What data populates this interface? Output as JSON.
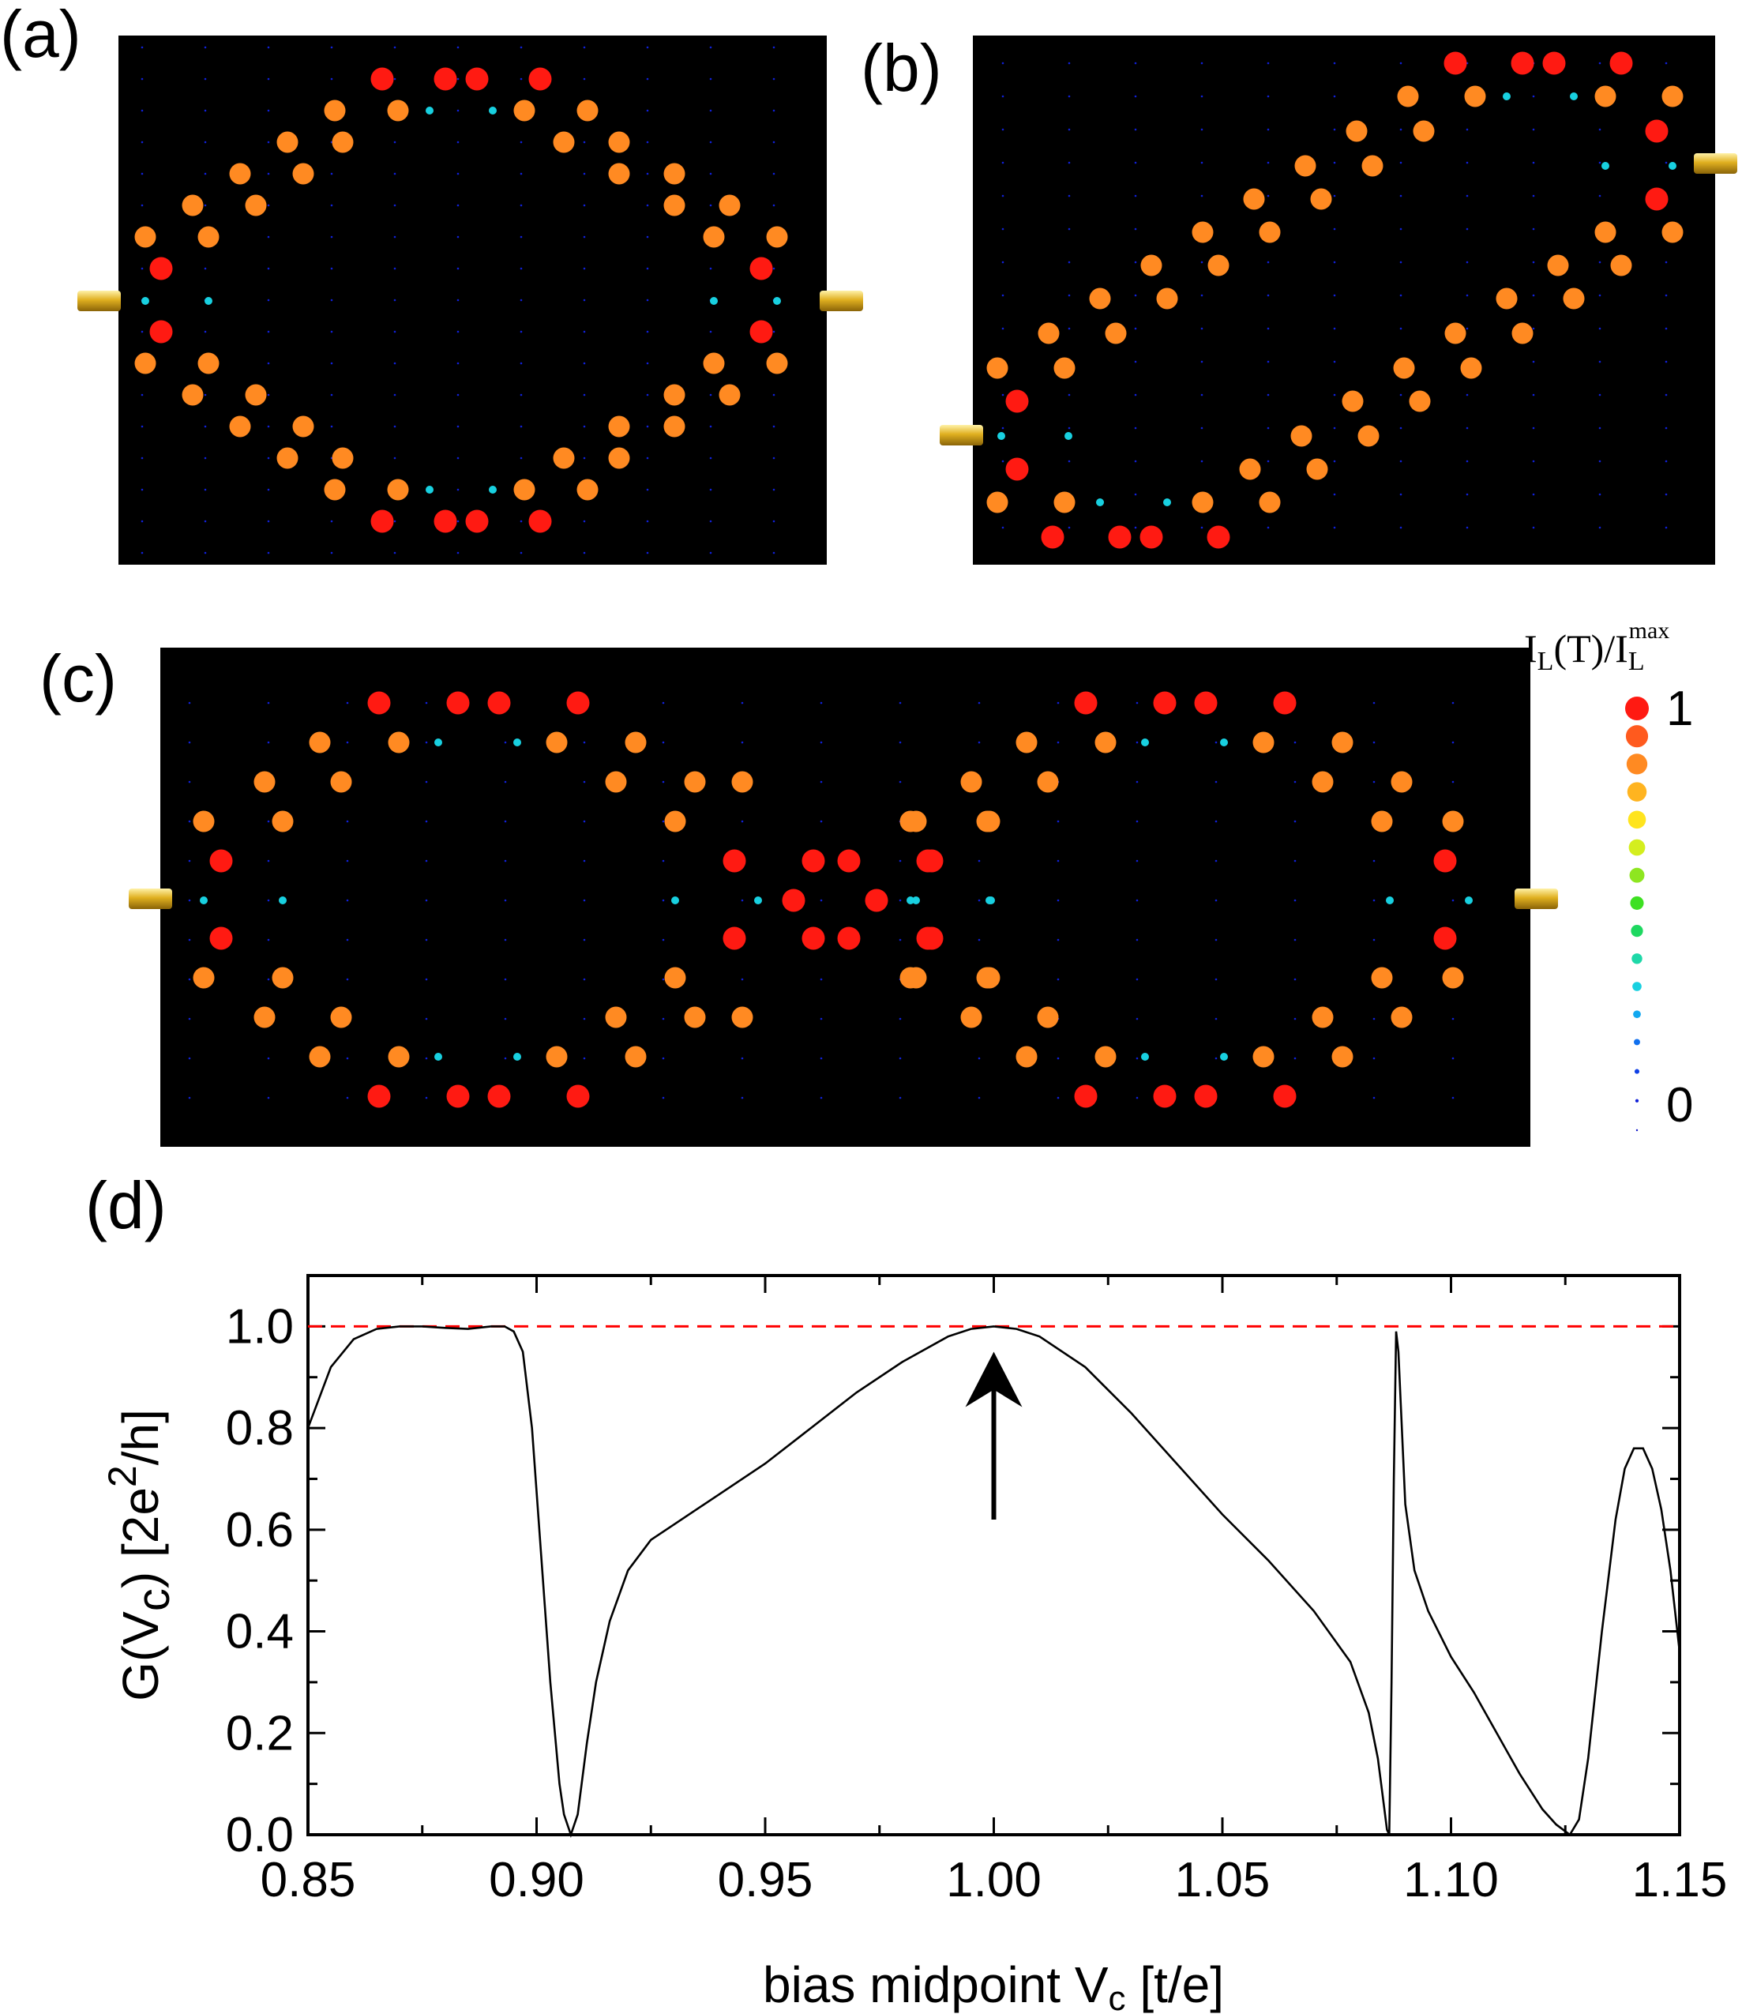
{
  "panels": {
    "a": {
      "label": "(a)"
    },
    "b": {
      "label": "(b)"
    },
    "c": {
      "label": "(c)"
    },
    "d": {
      "label": "(d)"
    }
  },
  "colorbar": {
    "title_main": "I",
    "title_sub1": "L",
    "title_mid": "(T)/I",
    "title_sub2": "L",
    "title_sup": "max",
    "max_label": "1",
    "min_label": "0",
    "colors": [
      "#ff1a12",
      "#ff5a1e",
      "#ff8a22",
      "#ffb420",
      "#ffe41e",
      "#d4ee1e",
      "#8ee620",
      "#3ee022",
      "#1ed860",
      "#1ed8a8",
      "#18d0e0",
      "#12a8f0",
      "#1070ee",
      "#1040e6",
      "#1020d8",
      "#1018c8"
    ]
  },
  "chart_data": {
    "type": "line",
    "title": "",
    "xlabel": "bias midpoint V",
    "xlabel_sub": "c",
    "xlabel_unit": " [t/e]",
    "ylabel": "G(V",
    "ylabel_sub": "c",
    "ylabel_unit": ") [2e",
    "ylabel_sup": "2",
    "ylabel_tail": "/h]",
    "xlim": [
      0.85,
      1.15
    ],
    "ylim": [
      0.0,
      1.1
    ],
    "xticks": [
      "0.85",
      "0.90",
      "0.95",
      "1.00",
      "1.05",
      "1.10",
      "1.15"
    ],
    "yticks": [
      "0.0",
      "0.2",
      "0.4",
      "0.6",
      "0.8",
      "1.0"
    ],
    "reference_line": {
      "y": 1.0,
      "style": "dashed",
      "color": "#ff0000"
    },
    "annotation": {
      "type": "arrow",
      "x": 1.0,
      "y_from": 0.62,
      "y_to": 0.95,
      "direction": "up"
    },
    "series": [
      {
        "color": "#000000",
        "x": [
          0.85,
          0.855,
          0.86,
          0.865,
          0.87,
          0.875,
          0.88,
          0.885,
          0.89,
          0.893,
          0.895,
          0.897,
          0.899,
          0.901,
          0.903,
          0.905,
          0.906,
          0.9075,
          0.909,
          0.911,
          0.913,
          0.916,
          0.92,
          0.925,
          0.93,
          0.94,
          0.95,
          0.96,
          0.97,
          0.98,
          0.99,
          0.995,
          1.0,
          1.005,
          1.01,
          1.02,
          1.03,
          1.04,
          1.05,
          1.06,
          1.07,
          1.078,
          1.082,
          1.084,
          1.085,
          1.086,
          1.0865,
          1.087,
          1.0875,
          1.088,
          1.0885,
          1.089,
          1.09,
          1.092,
          1.095,
          1.1,
          1.105,
          1.11,
          1.115,
          1.12,
          1.123,
          1.126,
          1.128,
          1.13,
          1.133,
          1.136,
          1.138,
          1.14,
          1.142,
          1.144,
          1.146,
          1.148,
          1.15
        ],
        "y": [
          0.8,
          0.92,
          0.975,
          0.995,
          1.0,
          1.0,
          0.997,
          0.995,
          1.0,
          1.0,
          0.99,
          0.95,
          0.8,
          0.55,
          0.3,
          0.1,
          0.04,
          0.0,
          0.04,
          0.18,
          0.3,
          0.42,
          0.52,
          0.58,
          0.61,
          0.67,
          0.73,
          0.8,
          0.87,
          0.93,
          0.98,
          0.995,
          1.0,
          0.995,
          0.98,
          0.92,
          0.83,
          0.73,
          0.63,
          0.54,
          0.44,
          0.34,
          0.24,
          0.15,
          0.08,
          0.01,
          0.0,
          0.3,
          0.7,
          0.99,
          0.95,
          0.85,
          0.65,
          0.52,
          0.44,
          0.35,
          0.28,
          0.2,
          0.12,
          0.05,
          0.02,
          0.0,
          0.03,
          0.15,
          0.4,
          0.62,
          0.72,
          0.76,
          0.76,
          0.72,
          0.64,
          0.52,
          0.36
        ]
      }
    ]
  }
}
